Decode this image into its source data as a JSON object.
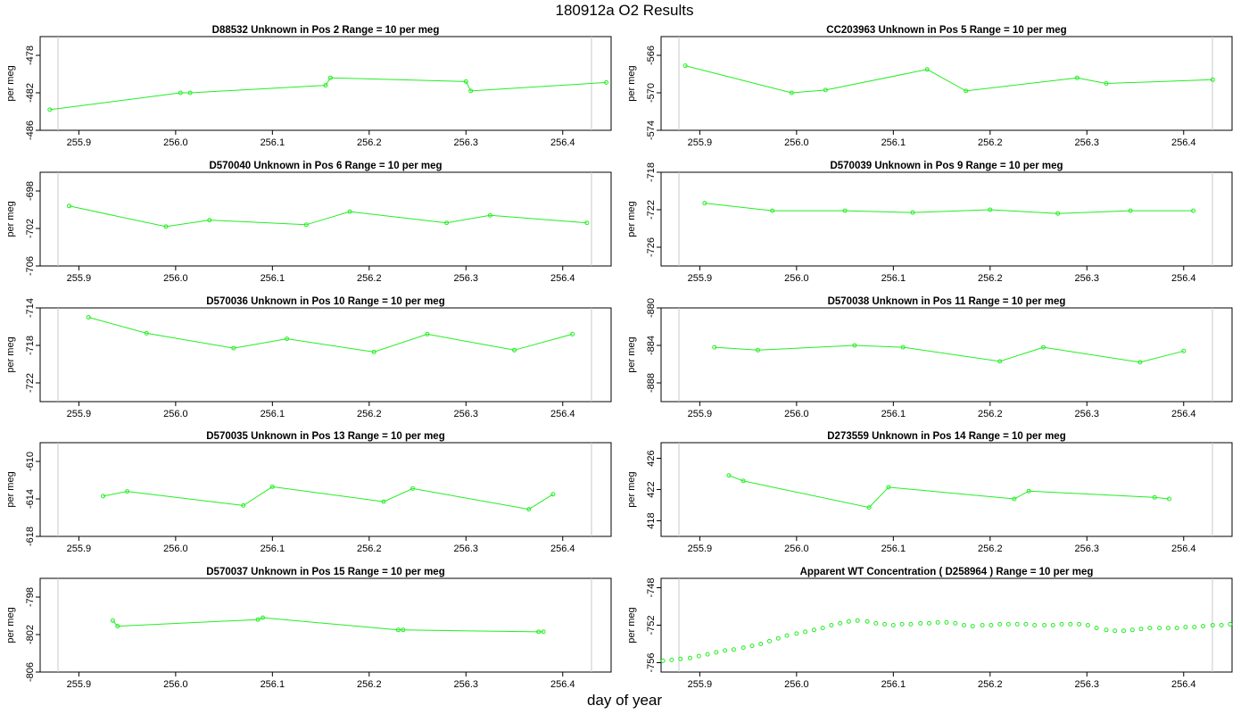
{
  "page": {
    "title": "180912a  O2 Results",
    "xlabel": "day of year"
  },
  "chart_data": [
    {
      "type": "line",
      "title": "D88532    Unknown in Pos 2         Range = 10 per meg",
      "ylabel": "per meg",
      "xlim": [
        255.86,
        256.45
      ],
      "ylim": [
        -486,
        -476
      ],
      "yticks": [
        -478,
        -482,
        -486
      ],
      "xticks": [
        255.9,
        256.0,
        256.1,
        256.2,
        256.3,
        256.4
      ],
      "x": [
        255.87,
        256.005,
        256.015,
        256.155,
        256.16,
        256.3,
        256.305,
        256.445
      ],
      "y": [
        -483.8,
        -482.0,
        -482.0,
        -481.2,
        -480.4,
        -480.8,
        -481.8,
        -480.9
      ]
    },
    {
      "type": "line",
      "title": "CC203963    Unknown in Pos 5         Range = 10 per meg",
      "ylabel": "per meg",
      "xlim": [
        255.86,
        256.45
      ],
      "ylim": [
        -574,
        -564
      ],
      "yticks": [
        -566,
        -570,
        -574
      ],
      "xticks": [
        255.9,
        256.0,
        256.1,
        256.2,
        256.3,
        256.4
      ],
      "x": [
        255.885,
        255.995,
        256.03,
        256.135,
        256.175,
        256.29,
        256.32,
        256.43
      ],
      "y": [
        -567.1,
        -570.0,
        -569.7,
        -567.5,
        -569.8,
        -568.4,
        -569.0,
        -568.6
      ]
    },
    {
      "type": "line",
      "title": "D570040    Unknown in Pos 6         Range = 10 per meg",
      "ylabel": "per meg",
      "xlim": [
        255.86,
        256.45
      ],
      "ylim": [
        -706,
        -696
      ],
      "yticks": [
        -698,
        -702,
        -706
      ],
      "xticks": [
        255.9,
        256.0,
        256.1,
        256.2,
        256.3,
        256.4
      ],
      "x": [
        255.89,
        255.99,
        256.035,
        256.135,
        256.18,
        256.28,
        256.325,
        256.425
      ],
      "y": [
        -699.6,
        -701.8,
        -701.1,
        -701.6,
        -700.2,
        -701.4,
        -700.6,
        -701.4
      ]
    },
    {
      "type": "line",
      "title": "D570039    Unknown in Pos 9         Range = 10 per meg",
      "ylabel": "per meg",
      "xlim": [
        255.86,
        256.45
      ],
      "ylim": [
        -728,
        -718
      ],
      "yticks": [
        -718,
        -722,
        -726
      ],
      "xticks": [
        255.9,
        256.0,
        256.1,
        256.2,
        256.3,
        256.4
      ],
      "x": [
        255.905,
        255.975,
        256.05,
        256.12,
        256.2,
        256.27,
        256.345,
        256.41
      ],
      "y": [
        -721.3,
        -722.1,
        -722.1,
        -722.3,
        -722.0,
        -722.4,
        -722.1,
        -722.1
      ]
    },
    {
      "type": "line",
      "title": "D570036    Unknown in Pos 10         Range = 10 per meg",
      "ylabel": "per meg",
      "xlim": [
        255.86,
        256.45
      ],
      "ylim": [
        -724,
        -714
      ],
      "yticks": [
        -714,
        -718,
        -722
      ],
      "xticks": [
        255.9,
        256.0,
        256.1,
        256.2,
        256.3,
        256.4
      ],
      "x": [
        255.91,
        255.97,
        256.06,
        256.115,
        256.205,
        256.26,
        256.35,
        256.41
      ],
      "y": [
        -715.0,
        -716.7,
        -718.3,
        -717.3,
        -718.7,
        -716.8,
        -718.5,
        -716.8
      ]
    },
    {
      "type": "line",
      "title": "D570038    Unknown in Pos 11         Range = 10 per meg",
      "ylabel": "per meg",
      "xlim": [
        255.86,
        256.45
      ],
      "ylim": [
        -890,
        -880
      ],
      "yticks": [
        -880,
        -884,
        -888
      ],
      "xticks": [
        255.9,
        256.0,
        256.1,
        256.2,
        256.3,
        256.4
      ],
      "x": [
        255.915,
        255.96,
        256.06,
        256.11,
        256.21,
        256.255,
        256.355,
        256.4
      ],
      "y": [
        -884.2,
        -884.5,
        -884.0,
        -884.2,
        -885.7,
        -884.2,
        -885.8,
        -884.6
      ]
    },
    {
      "type": "line",
      "title": "D570035    Unknown in Pos 13         Range = 10 per meg",
      "ylabel": "per meg",
      "xlim": [
        255.86,
        256.45
      ],
      "ylim": [
        -618,
        -608
      ],
      "yticks": [
        -610,
        -614,
        -618
      ],
      "xticks": [
        255.9,
        256.0,
        256.1,
        256.2,
        256.3,
        256.4
      ],
      "x": [
        255.925,
        255.95,
        256.07,
        256.1,
        256.215,
        256.245,
        256.365,
        256.39
      ],
      "y": [
        -613.7,
        -613.2,
        -614.7,
        -612.7,
        -614.3,
        -612.9,
        -615.1,
        -613.5
      ]
    },
    {
      "type": "line",
      "title": "D273559    Unknown in Pos 14         Range = 10 per meg",
      "ylabel": "per meg",
      "xlim": [
        255.86,
        256.45
      ],
      "ylim": [
        -418,
        -428
      ],
      "yticks": [
        426,
        422,
        418
      ],
      "xticks": [
        255.9,
        256.0,
        256.1,
        256.2,
        256.3,
        256.4
      ],
      "x": [
        255.93,
        255.945,
        256.075,
        256.095,
        256.225,
        256.24,
        256.37,
        256.385
      ],
      "y": [
        423.8,
        423.1,
        419.7,
        422.3,
        420.8,
        421.8,
        421.0,
        420.8
      ]
    },
    {
      "type": "line",
      "title": "D570037    Unknown in Pos 15         Range = 10 per meg",
      "ylabel": "per meg",
      "xlim": [
        255.86,
        256.45
      ],
      "ylim": [
        -806,
        -796
      ],
      "yticks": [
        -798,
        -802,
        -806
      ],
      "xticks": [
        255.9,
        256.0,
        256.1,
        256.2,
        256.3,
        256.4
      ],
      "x": [
        255.935,
        255.94,
        256.085,
        256.09,
        256.23,
        256.235,
        256.375,
        256.38
      ],
      "y": [
        -800.5,
        -801.1,
        -800.4,
        -800.2,
        -801.5,
        -801.5,
        -801.7,
        -801.7
      ]
    },
    {
      "type": "scatter",
      "title": "Apparent WT Concentration ( D258964 )         Range = 10 per meg",
      "ylabel": "per meg",
      "xlim": [
        255.86,
        256.45
      ],
      "ylim": [
        -757,
        -747
      ],
      "yticks": [
        -748,
        -752,
        -756
      ],
      "xticks": [
        255.9,
        256.0,
        256.1,
        256.2,
        256.3,
        256.4
      ],
      "x": [
        255.862,
        255.871,
        255.88,
        255.89,
        255.899,
        255.908,
        255.917,
        255.926,
        255.935,
        255.945,
        255.954,
        255.963,
        255.972,
        255.981,
        255.99,
        256.0,
        256.009,
        256.018,
        256.027,
        256.036,
        256.045,
        256.054,
        256.063,
        256.073,
        256.082,
        256.091,
        256.1,
        256.109,
        256.118,
        256.128,
        256.137,
        256.146,
        256.155,
        256.164,
        256.173,
        256.182,
        256.192,
        256.201,
        256.21,
        256.219,
        256.228,
        256.237,
        256.246,
        256.256,
        256.265,
        256.274,
        256.283,
        256.292,
        256.301,
        256.31,
        256.32,
        256.329,
        256.338,
        256.347,
        256.356,
        256.365,
        256.375,
        256.384,
        256.393,
        256.402,
        256.411,
        256.42,
        256.43,
        256.439,
        256.448
      ],
      "y": [
        -755.8,
        -755.7,
        -755.6,
        -755.5,
        -755.3,
        -755.1,
        -754.9,
        -754.7,
        -754.6,
        -754.4,
        -754.2,
        -754.0,
        -753.7,
        -753.4,
        -753.1,
        -752.9,
        -752.7,
        -752.5,
        -752.3,
        -752.0,
        -751.8,
        -751.6,
        -751.5,
        -751.6,
        -751.8,
        -751.9,
        -752.0,
        -751.9,
        -751.9,
        -751.8,
        -751.8,
        -751.7,
        -751.7,
        -751.8,
        -752.0,
        -752.1,
        -752.0,
        -752.0,
        -751.9,
        -751.9,
        -751.9,
        -751.9,
        -752.0,
        -752.0,
        -752.0,
        -751.9,
        -751.9,
        -751.9,
        -752.0,
        -752.3,
        -752.5,
        -752.6,
        -752.6,
        -752.5,
        -752.4,
        -752.3,
        -752.3,
        -752.3,
        -752.3,
        -752.2,
        -752.2,
        -752.1,
        -752.0,
        -752.0,
        -751.9
      ]
    }
  ]
}
